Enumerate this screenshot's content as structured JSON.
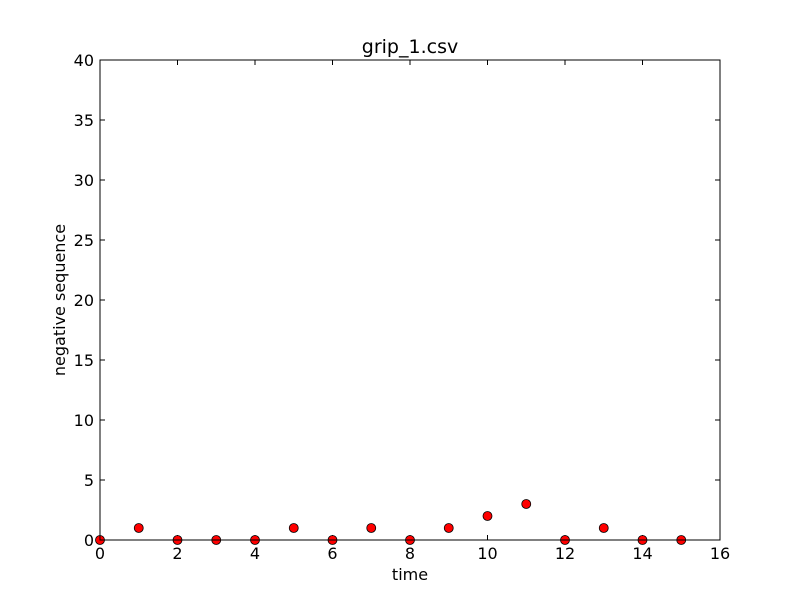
{
  "chart_data": {
    "type": "scatter",
    "title": "grip_1.csv",
    "xlabel": "time",
    "ylabel": "negative sequence",
    "xlim": [
      0,
      16
    ],
    "ylim": [
      0,
      40
    ],
    "x_ticks": [
      "0",
      "2",
      "4",
      "6",
      "8",
      "10",
      "12",
      "14",
      "16"
    ],
    "y_ticks": [
      "0",
      "5",
      "10",
      "15",
      "20",
      "25",
      "30",
      "35",
      "40"
    ],
    "grid": false,
    "legend": "none",
    "marker_color": "#ff0000",
    "marker_edge_color": "#000000",
    "series": [
      {
        "x": [
          0,
          1,
          2,
          3,
          4,
          5,
          6,
          7,
          8,
          9,
          10,
          11,
          12,
          13,
          14,
          15
        ],
        "y": [
          0,
          1,
          0,
          0,
          0,
          1,
          0,
          1,
          0,
          1,
          2,
          3,
          0,
          1,
          0,
          0
        ]
      }
    ]
  }
}
